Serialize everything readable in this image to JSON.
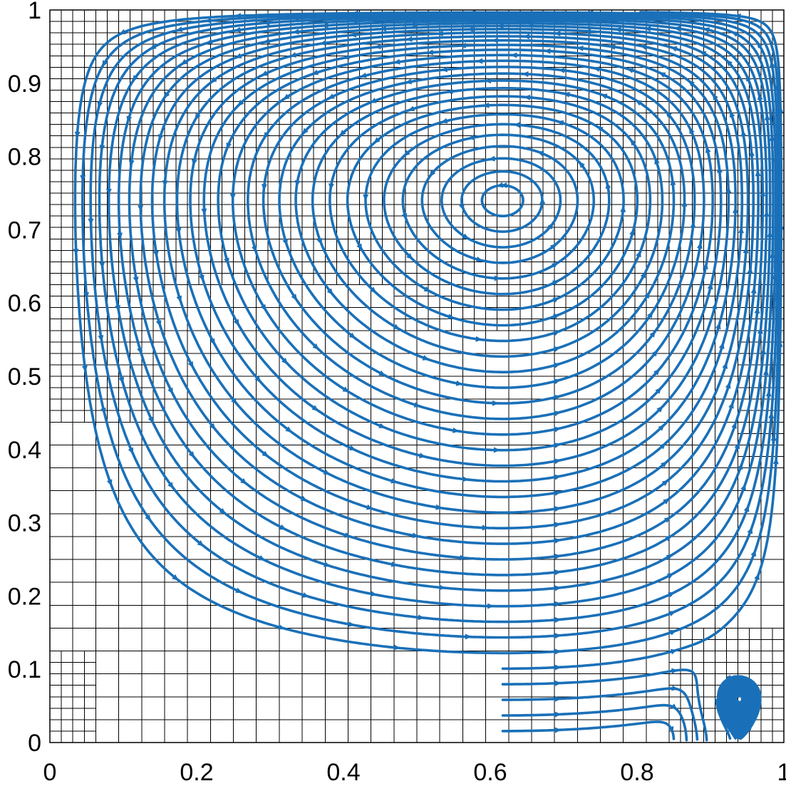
{
  "chart_data": {
    "type": "streamline",
    "title": "",
    "xlabel": "",
    "ylabel": "",
    "xlim": [
      0,
      1
    ],
    "ylim": [
      0,
      1
    ],
    "x_ticks": [
      "0",
      "0.2",
      "0.4",
      "0.6",
      "0.8",
      "1"
    ],
    "y_ticks": [
      "0",
      "0.1",
      "0.2",
      "0.3",
      "0.4",
      "0.5",
      "0.6",
      "0.7",
      "0.8",
      "0.9",
      "1"
    ],
    "grid": "adaptive mesh overlay",
    "legend": "none",
    "stream_color": "#1a70b8",
    "mesh_color": "#000000",
    "primary_vortex": {
      "center": [
        0.617,
        0.74
      ],
      "rotation": "clockwise"
    },
    "secondary_vortex": {
      "center": [
        0.94,
        0.058
      ],
      "rotation": "counter-clockwise"
    },
    "mesh": {
      "coarse_spacing": 0.03125,
      "fine_spacing": 0.015625,
      "refined_regions": [
        {
          "x": [
            0.0,
            0.16
          ],
          "y": [
            0.44,
            1.0
          ]
        },
        {
          "x": [
            0.16,
            0.47
          ],
          "y": [
            0.62,
            1.0
          ]
        },
        {
          "x": [
            0.47,
            0.93
          ],
          "y": [
            0.56,
            1.0
          ]
        },
        {
          "x": [
            0.93,
            1.0
          ],
          "y": [
            0.38,
            1.0
          ]
        },
        {
          "x": [
            0.85,
            1.0
          ],
          "y": [
            0.0,
            0.16
          ]
        },
        {
          "x": [
            0.0,
            0.06
          ],
          "y": [
            0.0,
            0.12
          ]
        }
      ]
    }
  }
}
